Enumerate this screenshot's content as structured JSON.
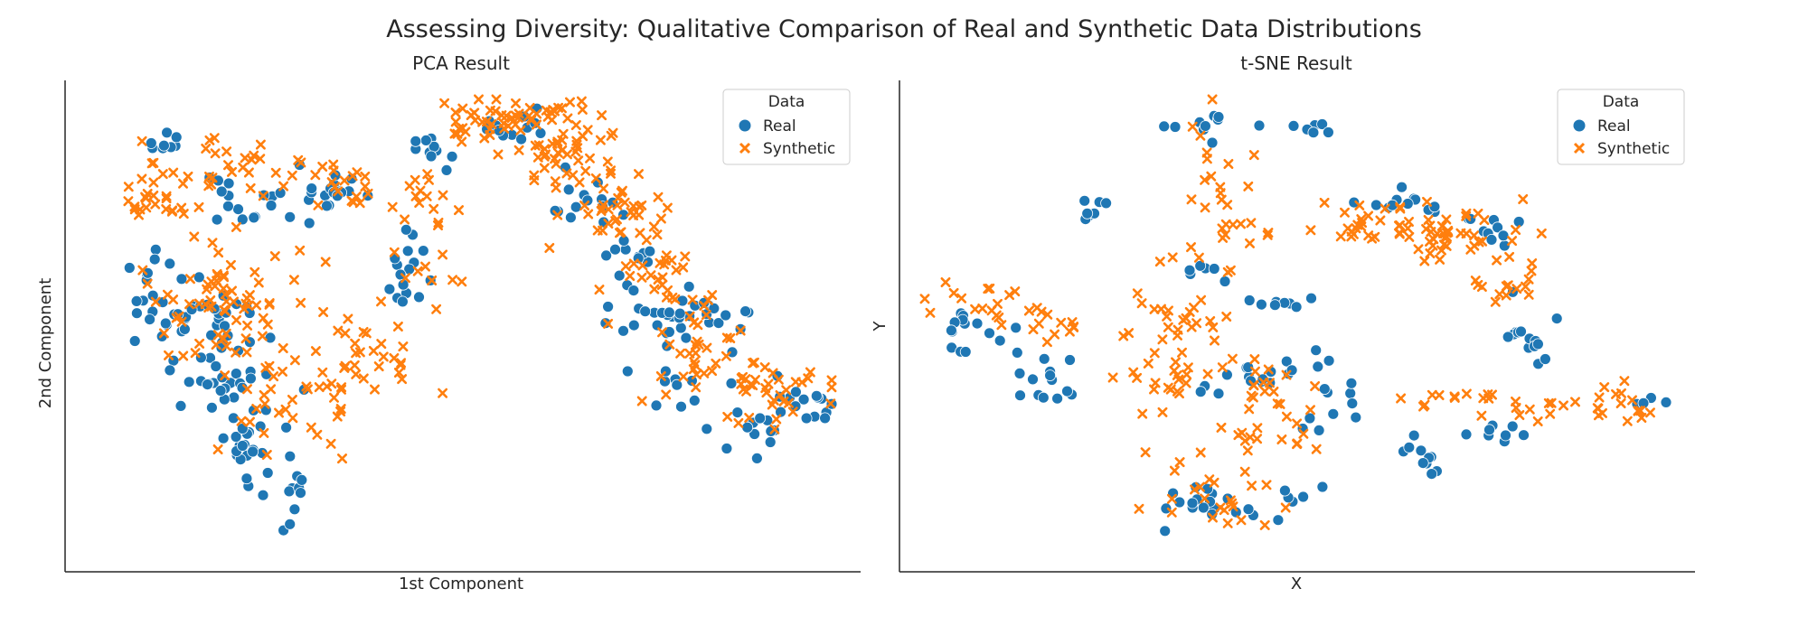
{
  "figure": {
    "title": "Assessing Diversity: Qualitative Comparison of Real and Synthetic Data Distributions"
  },
  "colors": {
    "real": "#1f77b4",
    "synthetic": "#ff7f0e",
    "axis": "#262626"
  },
  "chart_data": [
    {
      "type": "scatter",
      "title": "PCA Result",
      "xlabel": "1st Component",
      "ylabel": "2nd Component",
      "xticks": [],
      "yticks": [],
      "xlim": [
        0,
        100
      ],
      "ylim": [
        0,
        100
      ],
      "legend": {
        "title": "Data",
        "entries": [
          "Real",
          "Synthetic"
        ],
        "placement": "top-right"
      },
      "series": [
        {
          "name": "Real",
          "marker": "circle",
          "clusters": [
            {
              "center": [
                10,
                90
              ],
              "spread": [
                1.5,
                2
              ],
              "count": 8
            },
            {
              "center": [
                22,
                77
              ],
              "spread": [
                4,
                3.5
              ],
              "count": 20
            },
            {
              "center": [
                33,
                80
              ],
              "spread": [
                3,
                2.5
              ],
              "count": 14
            },
            {
              "center": [
                42,
                62
              ],
              "spread": [
                2.5,
                5
              ],
              "count": 16
            },
            {
              "center": [
                10,
                55
              ],
              "spread": [
                3,
                6
              ],
              "count": 30
            },
            {
              "center": [
                18,
                45
              ],
              "spread": [
                3,
                6
              ],
              "count": 35
            },
            {
              "center": [
                20,
                28
              ],
              "spread": [
                3,
                6
              ],
              "count": 30
            },
            {
              "center": [
                26,
                12
              ],
              "spread": [
                2,
                3
              ],
              "count": 12
            },
            {
              "center": [
                47,
                89
              ],
              "spread": [
                3,
                2
              ],
              "count": 10
            },
            {
              "center": [
                57,
                94
              ],
              "spread": [
                3,
                2
              ],
              "count": 12
            },
            {
              "center": [
                66,
                78
              ],
              "spread": [
                3,
                3
              ],
              "count": 14
            },
            {
              "center": [
                73,
                64
              ],
              "spread": [
                2,
                4
              ],
              "count": 12
            },
            {
              "center": [
                76,
                52
              ],
              "spread": [
                3,
                2
              ],
              "count": 16
            },
            {
              "center": [
                84,
                53
              ],
              "spread": [
                3,
                2
              ],
              "count": 14
            },
            {
              "center": [
                80,
                38
              ],
              "spread": [
                3,
                4
              ],
              "count": 14
            },
            {
              "center": [
                88,
                27
              ],
              "spread": [
                3,
                4
              ],
              "count": 14
            },
            {
              "center": [
                97,
                33
              ],
              "spread": [
                2,
                3
              ],
              "count": 14
            }
          ]
        },
        {
          "name": "Synthetic",
          "marker": "x",
          "clusters": [
            {
              "center": [
                8,
                78
              ],
              "spread": [
                3,
                3
              ],
              "count": 25
            },
            {
              "center": [
                20,
                84
              ],
              "spread": [
                5,
                4
              ],
              "count": 30
            },
            {
              "center": [
                34,
                80
              ],
              "spread": [
                4,
                4
              ],
              "count": 20
            },
            {
              "center": [
                18,
                55
              ],
              "spread": [
                6,
                7
              ],
              "count": 70
            },
            {
              "center": [
                30,
                35
              ],
              "spread": [
                6,
                6
              ],
              "count": 45
            },
            {
              "center": [
                38,
                45
              ],
              "spread": [
                4,
                5
              ],
              "count": 20
            },
            {
              "center": [
                45,
                60
              ],
              "spread": [
                3,
                4
              ],
              "count": 10
            },
            {
              "center": [
                46,
                79
              ],
              "spread": [
                2,
                4
              ],
              "count": 12
            },
            {
              "center": [
                55,
                96
              ],
              "spread": [
                6,
                3
              ],
              "count": 55
            },
            {
              "center": [
                64,
                88
              ],
              "spread": [
                4,
                4
              ],
              "count": 40
            },
            {
              "center": [
                71,
                75
              ],
              "spread": [
                4,
                4
              ],
              "count": 35
            },
            {
              "center": [
                77,
                60
              ],
              "spread": [
                4,
                4
              ],
              "count": 30
            },
            {
              "center": [
                83,
                45
              ],
              "spread": [
                4,
                5
              ],
              "count": 30
            },
            {
              "center": [
                93,
                35
              ],
              "spread": [
                4,
                4
              ],
              "count": 35
            }
          ]
        }
      ]
    },
    {
      "type": "scatter",
      "title": "t-SNE Result",
      "xlabel": "X",
      "ylabel": "Y",
      "xticks": [],
      "yticks": [],
      "xlim": [
        0,
        100
      ],
      "ylim": [
        0,
        100
      ],
      "legend": {
        "title": "Data",
        "entries": [
          "Real",
          "Synthetic"
        ],
        "placement": "top-right"
      },
      "series": [
        {
          "name": "Real",
          "marker": "circle",
          "clusters": [
            {
              "center": [
                22,
                75
              ],
              "spread": [
                1,
                1
              ],
              "count": 8
            },
            {
              "center": [
                5,
                48
              ],
              "spread": [
                2.5,
                3
              ],
              "count": 14
            },
            {
              "center": [
                16,
                37
              ],
              "spread": [
                2,
                4
              ],
              "count": 14
            },
            {
              "center": [
                38,
                94
              ],
              "spread": [
                4,
                2
              ],
              "count": 10
            },
            {
              "center": [
                52,
                93
              ],
              "spread": [
                2,
                1
              ],
              "count": 6
            },
            {
              "center": [
                37,
                62
              ],
              "spread": [
                1.5,
                1
              ],
              "count": 6
            },
            {
              "center": [
                47,
                55
              ],
              "spread": [
                2,
                1
              ],
              "count": 8
            },
            {
              "center": [
                40,
                10
              ],
              "spread": [
                6,
                3
              ],
              "count": 24
            },
            {
              "center": [
                47,
                40
              ],
              "spread": [
                4,
                4
              ],
              "count": 18
            },
            {
              "center": [
                53,
                31
              ],
              "spread": [
                3,
                3
              ],
              "count": 10
            },
            {
              "center": [
                65,
                77
              ],
              "spread": [
                5,
                2
              ],
              "count": 12
            },
            {
              "center": [
                76,
                72
              ],
              "spread": [
                2,
                2
              ],
              "count": 10
            },
            {
              "center": [
                80,
                48
              ],
              "spread": [
                3,
                3
              ],
              "count": 14
            },
            {
              "center": [
                68,
                20
              ],
              "spread": [
                2,
                2
              ],
              "count": 10
            },
            {
              "center": [
                78,
                27
              ],
              "spread": [
                3,
                2
              ],
              "count": 8
            },
            {
              "center": [
                97,
                33
              ],
              "spread": [
                1,
                1
              ],
              "count": 4
            }
          ]
        },
        {
          "name": "Synthetic",
          "marker": "x",
          "clusters": [
            {
              "center": [
                40,
                78
              ],
              "spread": [
                3,
                12
              ],
              "count": 30
            },
            {
              "center": [
                8,
                55
              ],
              "spread": [
                5,
                3
              ],
              "count": 16
            },
            {
              "center": [
                15,
                51
              ],
              "spread": [
                4,
                2
              ],
              "count": 14
            },
            {
              "center": [
                35,
                48
              ],
              "spread": [
                4,
                6
              ],
              "count": 30
            },
            {
              "center": [
                36,
                38
              ],
              "spread": [
                5,
                3
              ],
              "count": 20
            },
            {
              "center": [
                40,
                16
              ],
              "spread": [
                6,
                6
              ],
              "count": 30
            },
            {
              "center": [
                48,
                30
              ],
              "spread": [
                4,
                6
              ],
              "count": 25
            },
            {
              "center": [
                62,
                71
              ],
              "spread": [
                6,
                3
              ],
              "count": 40
            },
            {
              "center": [
                74,
                70
              ],
              "spread": [
                4,
                3
              ],
              "count": 30
            },
            {
              "center": [
                79,
                58
              ],
              "spread": [
                3,
                4
              ],
              "count": 14
            },
            {
              "center": [
                74,
                33
              ],
              "spread": [
                5,
                2
              ],
              "count": 18
            },
            {
              "center": [
                92,
                32
              ],
              "spread": [
                5,
                2
              ],
              "count": 22
            }
          ]
        }
      ]
    }
  ]
}
